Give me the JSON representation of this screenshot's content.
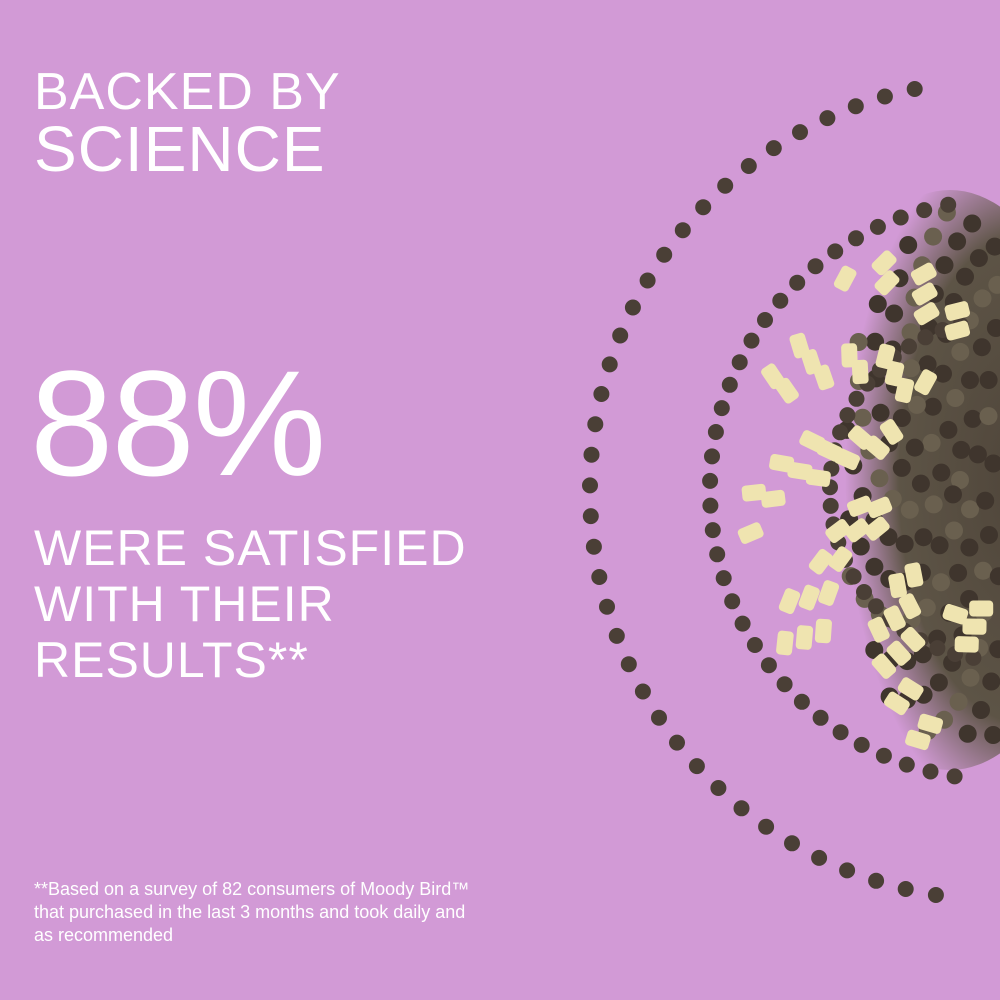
{
  "headline": {
    "line1": "BACKED BY",
    "line2": "SCIENCE"
  },
  "stat": {
    "value": "88%"
  },
  "claim": {
    "line1": "WERE SATISFIED",
    "line2": "WITH THEIR",
    "line3": "RESULTS**"
  },
  "footnote": {
    "line1": "**Based on a survey of 82 consumers of Moody Bird™",
    "line2": "that purchased in the last 3 months and took daily and",
    "line3": "as recommended"
  },
  "colors": {
    "background": "#d29ad6",
    "text": "#ffffff",
    "capsule": "#8d8748",
    "seed": "#4a3f36",
    "root": "#efe4b0"
  }
}
